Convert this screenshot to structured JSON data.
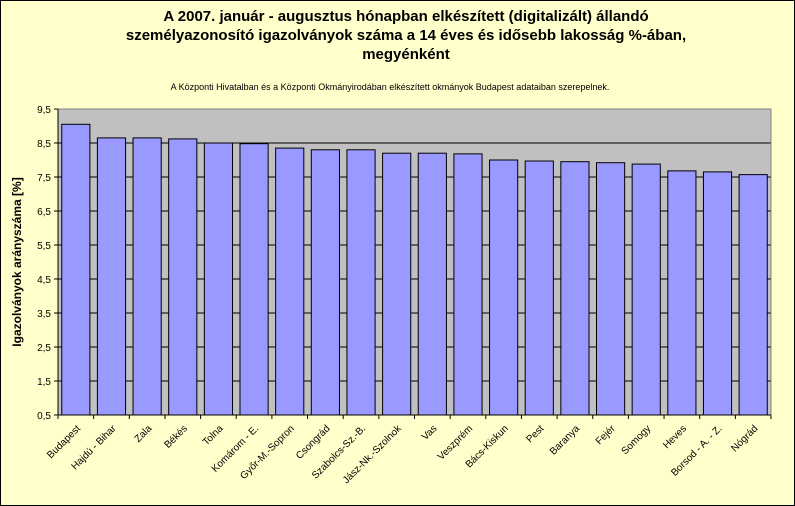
{
  "chart_data": {
    "type": "bar",
    "title_lines": [
      "A 2007. január - augusztus hónapban elkészített (digitalizált) állandó",
      "személyazonosító igazolványok száma a 14 éves és idősebb lakosság %-ában,",
      "megyénként"
    ],
    "subtitle": "A  Központi Hivatalban és a Központi Okmányirodában elkészített  okmányok Budapest adataiban szerepelnek.",
    "ylabel": "Igazolványok arányszáma [%]",
    "xlabel": "",
    "ylim": [
      0.5,
      9.5
    ],
    "yticks": [
      "0,5",
      "1,5",
      "2,5",
      "3,5",
      "4,5",
      "5,5",
      "6,5",
      "7,5",
      "8,5",
      "9,5"
    ],
    "grid": true,
    "legend": "none",
    "bar_color": "#9999ff",
    "categories": [
      "Budapest",
      "Hajdú - Bihar",
      "Zala",
      "Békés",
      "Tolna",
      "Komárom - E.",
      "Győr-M.-Sopron",
      "Csongrád",
      "Szabolcs-Sz.-B.",
      "Jász-Nk.-Szolnok",
      "Vas",
      "Veszprém",
      "Bács-Kiskun",
      "Pest",
      "Baranya",
      "Fejér",
      "Somogy",
      "Heves",
      "Borsod - A. - Z.",
      "Nógrád"
    ],
    "values": [
      9.05,
      8.65,
      8.65,
      8.62,
      8.5,
      8.48,
      8.35,
      8.3,
      8.3,
      8.2,
      8.2,
      8.18,
      8.0,
      7.97,
      7.95,
      7.92,
      7.88,
      7.68,
      7.65,
      7.57
    ]
  }
}
